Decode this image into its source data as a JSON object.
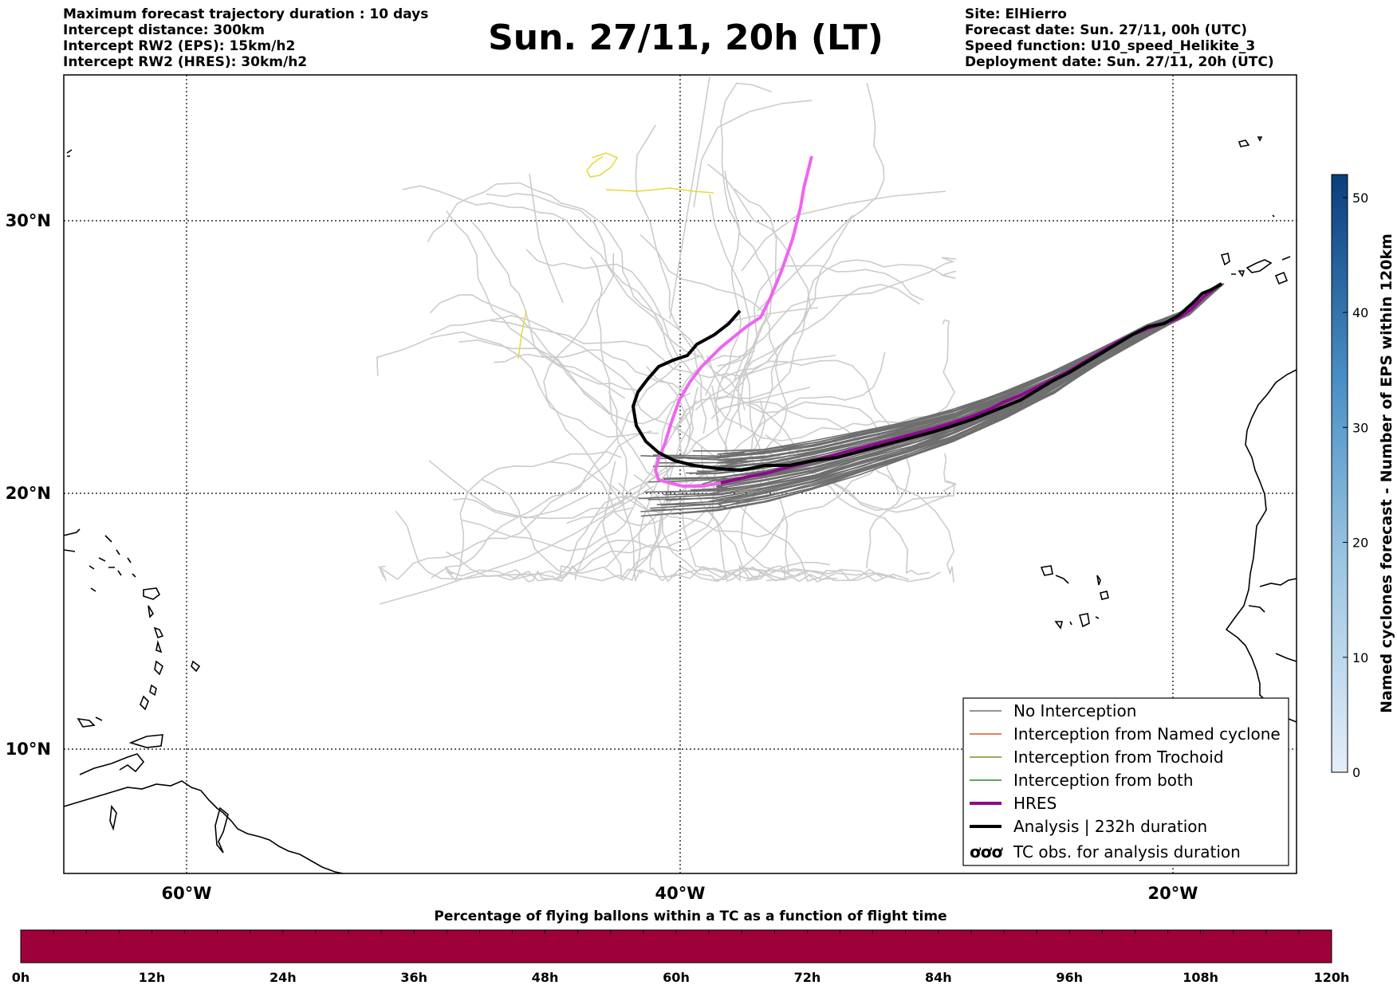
{
  "header_left": [
    "Maximum forecast trajectory duration : 10 days",
    "Intercept distance: 300km",
    "Intercept RW2 (EPS):  15km/h2",
    "Intercept RW2 (HRES): 30km/h2"
  ],
  "title": "Sun. 27/11, 20h (LT)",
  "header_right": [
    "Site: ElHierro",
    "Forecast date: Sun. 27/11, 00h (UTC)",
    "Speed function: U10_speed_Helikite_3",
    "Deployment date: Sun. 27/11, 20h (UTC)"
  ],
  "map": {
    "lat_labels": [
      "30°N",
      "20°N",
      "10°N"
    ],
    "lon_labels": [
      "60°W",
      "40°W",
      "20°W"
    ]
  },
  "colorbar": {
    "label": "Named cyclones forecast - Number of EPS within 120km",
    "ticks": [
      "0",
      "10",
      "20",
      "30",
      "40",
      "50"
    ],
    "range": [
      0,
      52
    ]
  },
  "legend": {
    "items": [
      {
        "label": "No Interception",
        "color": "#707070",
        "width": 1.5
      },
      {
        "label": "Interception from Named cyclone",
        "color": "#e4552b",
        "width": 1.5
      },
      {
        "label": "Interception from Trochoid",
        "color": "#8a8a2b",
        "width": 1.5
      },
      {
        "label": "Interception from both",
        "color": "#2a8a2a",
        "width": 1.5
      },
      {
        "label": "HRES",
        "color": "#8b0a8b",
        "width": 4
      },
      {
        "label": "Analysis | 232h duration",
        "color": "#000000",
        "width": 4
      }
    ],
    "tc_obs_label": "TC obs. for analysis duration",
    "tc_obs_symbol": "ơơơ"
  },
  "bottom_bar": {
    "title": "Percentage of flying ballons within a TC as a function of flight time",
    "ticks": [
      "0h",
      "12h",
      "24h",
      "36h",
      "48h",
      "60h",
      "72h",
      "84h",
      "96h",
      "108h",
      "120h"
    ],
    "color": "#9e003a"
  },
  "colors": {
    "no_interception_dark": "#6e6e6e",
    "no_interception_light": "#cccccc",
    "hres_track": "#ee66ee",
    "analysis_track": "#000000",
    "yellow_track": "#e6d83a"
  }
}
